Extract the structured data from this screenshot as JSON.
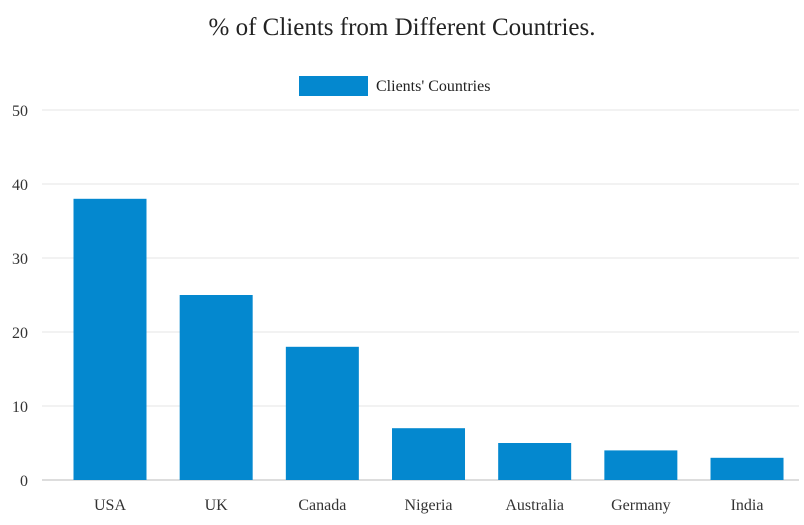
{
  "chart_data": {
    "type": "bar",
    "title": "% of Clients from Different Countries.",
    "categories": [
      "USA",
      "UK",
      "Canada",
      "Nigeria",
      "Australia",
      "Germany",
      "India"
    ],
    "series": [
      {
        "name": "Clients' Countries",
        "values": [
          38,
          25,
          18,
          7,
          5,
          4,
          3
        ],
        "color": "#0488cf"
      }
    ],
    "ylim": [
      0,
      50
    ],
    "yticks": [
      0,
      10,
      20,
      30,
      40,
      50
    ],
    "grid": true,
    "legend_position": "top-center",
    "xlabel": "",
    "ylabel": ""
  }
}
